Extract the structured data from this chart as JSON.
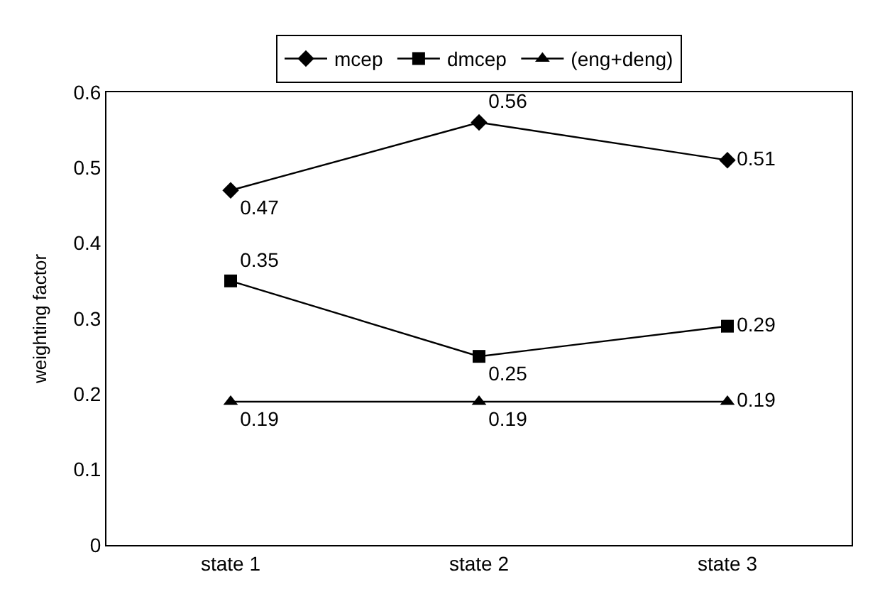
{
  "chart_data": {
    "type": "line",
    "ylabel": "weighting factor",
    "categories": [
      "state 1",
      "state 2",
      "state 3"
    ],
    "series": [
      {
        "name": "mcep",
        "color": "#000000",
        "marker": "diamond",
        "values": [
          0.47,
          0.56,
          0.51
        ]
      },
      {
        "name": "dmcep",
        "color": "#000000",
        "marker": "square",
        "values": [
          0.35,
          0.25,
          0.29
        ]
      },
      {
        "name": "(eng+deng)",
        "color": "#000000",
        "marker": "triangle",
        "values": [
          0.19,
          0.19,
          0.19
        ]
      }
    ],
    "ylim": [
      0,
      0.6
    ],
    "yticks": [
      0,
      0.1,
      0.2,
      0.3,
      0.4,
      0.5,
      0.6
    ],
    "grid": false,
    "legend": "top",
    "data_labels": true,
    "line_style": "solid"
  }
}
